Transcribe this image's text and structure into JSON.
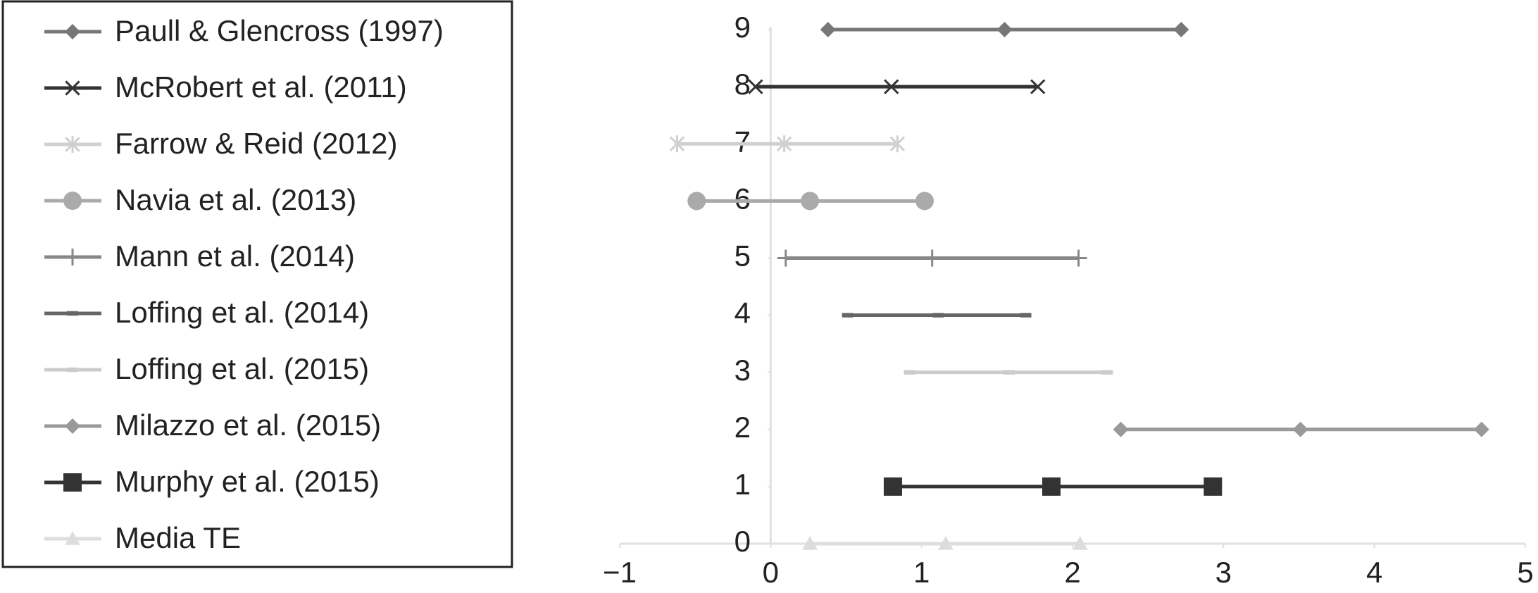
{
  "chart_data": {
    "type": "line",
    "xlim": [
      -1,
      5
    ],
    "xticks": [
      {
        "value": -1,
        "label": "−1"
      },
      0,
      1,
      2,
      3,
      4,
      5
    ],
    "ylim": [
      0,
      9
    ],
    "yticks": [
      0,
      1,
      2,
      3,
      4,
      5,
      6,
      7,
      8,
      9
    ],
    "legend": "left",
    "series": [
      {
        "name": "Paull & Glencross (1997)",
        "color": "#777777",
        "marker": "diamond",
        "x": [
          0.38,
          1.55,
          2.72
        ],
        "values": [
          9,
          9,
          9
        ]
      },
      {
        "name": "McRobert et al. (2011)",
        "color": "#333333",
        "marker": "x",
        "x": [
          -0.1,
          0.8,
          1.77
        ],
        "values": [
          8,
          8,
          8
        ]
      },
      {
        "name": "Farrow & Reid (2012)",
        "color": "#d0d0d0",
        "marker": "asterisk",
        "x": [
          -0.62,
          0.09,
          0.84
        ],
        "values": [
          7,
          7,
          7
        ]
      },
      {
        "name": "Navia et al. (2013)",
        "color": "#aaaaaa",
        "marker": "circle",
        "x": [
          -0.49,
          0.26,
          1.02
        ],
        "values": [
          6,
          6,
          6
        ]
      },
      {
        "name": "Mann et al. (2014)",
        "color": "#888888",
        "marker": "plus",
        "x": [
          0.1,
          1.07,
          2.04
        ],
        "values": [
          5,
          5,
          5
        ]
      },
      {
        "name": "Loffing et al. (2014)",
        "color": "#666666",
        "marker": "dash",
        "x": [
          0.51,
          1.11,
          1.69
        ],
        "values": [
          4,
          4,
          4
        ]
      },
      {
        "name": "Loffing et al. (2015)",
        "color": "#cccccc",
        "marker": "dash",
        "x": [
          0.92,
          1.58,
          2.23
        ],
        "values": [
          3,
          3,
          3
        ]
      },
      {
        "name": "Milazzo et al. (2015)",
        "color": "#999999",
        "marker": "diamond",
        "x": [
          2.32,
          3.51,
          4.71
        ],
        "values": [
          2,
          2,
          2
        ]
      },
      {
        "name": "Murphy et al. (2015)",
        "color": "#333333",
        "marker": "square",
        "x": [
          0.81,
          1.86,
          2.93
        ],
        "values": [
          1,
          1,
          1
        ]
      },
      {
        "name": "Media TE",
        "color": "#dddddd",
        "marker": "triangle",
        "x": [
          0.26,
          1.16,
          2.05
        ],
        "values": [
          0,
          0,
          0
        ]
      }
    ]
  }
}
